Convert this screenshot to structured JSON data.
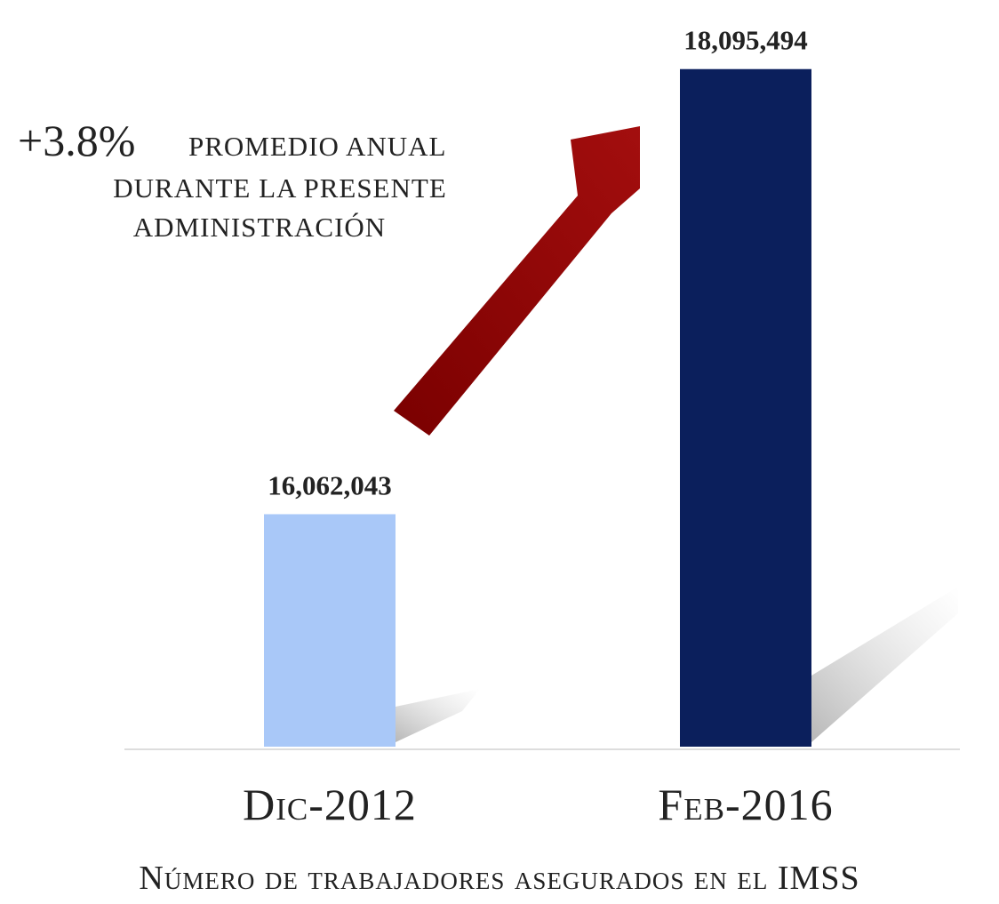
{
  "chart_data": {
    "type": "bar",
    "title": "Número de trabajadores asegurados en el IMSS",
    "categories": [
      "Dic-2012",
      "Feb-2016"
    ],
    "values": [
      16062043,
      18095494
    ],
    "value_labels": [
      "16,062,043",
      "18,095,494"
    ],
    "colors": [
      "#a9c8f8",
      "#0b1f5c"
    ],
    "ylim": [
      15000000,
      18200000
    ],
    "annotation": {
      "highlight": "+3.8%",
      "lines": [
        "PROMEDIO ANUAL",
        "DURANTE LA PRESENTE",
        "ADMINISTRACIÓN"
      ]
    }
  }
}
